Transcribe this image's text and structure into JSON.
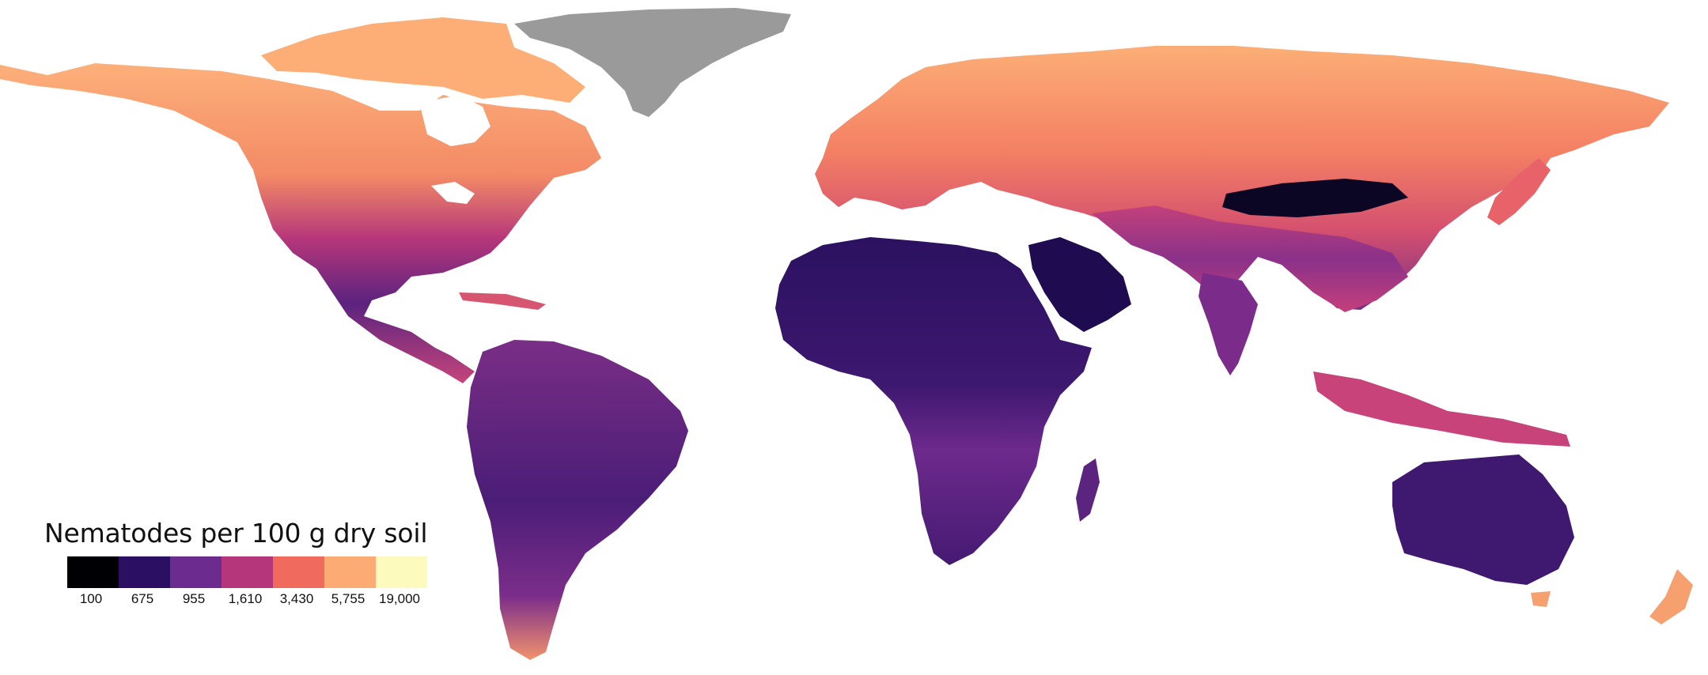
{
  "legend": {
    "title": "Nematodes per 100 g dry soil",
    "classes": [
      {
        "label": "100",
        "color": "#000004"
      },
      {
        "label": "675",
        "color": "#2a0f63"
      },
      {
        "label": "955",
        "color": "#6b2b8f"
      },
      {
        "label": "1,610",
        "color": "#b5367a"
      },
      {
        "label": "3,430",
        "color": "#f06a5d"
      },
      {
        "label": "5,755",
        "color": "#fdab74"
      },
      {
        "label": "19,000",
        "color": "#fcfabd"
      }
    ],
    "nodata_color": "#9a9a9a"
  }
}
